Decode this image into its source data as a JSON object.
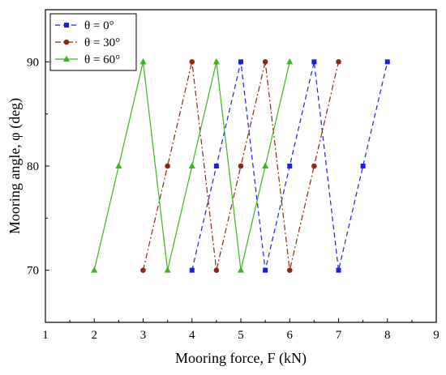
{
  "chart_data": {
    "type": "line",
    "xlabel": "Mooring force, F (kN)",
    "ylabel": "Mooring angle, φ (deg)",
    "xlim": [
      1,
      9
    ],
    "ylim": [
      65,
      95
    ],
    "xticks": [
      1,
      2,
      3,
      4,
      5,
      6,
      7,
      8,
      9
    ],
    "yticks": [
      70,
      80,
      90
    ],
    "legend_position": "top-left",
    "grid": false,
    "series": [
      {
        "name": "θ = 0°",
        "color": "#1f1fe0",
        "line_style": "dashed",
        "marker": "square",
        "points": [
          {
            "x": 4,
            "y": 70
          },
          {
            "x": 4.5,
            "y": 80
          },
          {
            "x": 5,
            "y": 90
          },
          {
            "x": 5.5,
            "y": 70
          },
          {
            "x": 6,
            "y": 80
          },
          {
            "x": 6.5,
            "y": 90
          },
          {
            "x": 7,
            "y": 70
          },
          {
            "x": 7.5,
            "y": 80
          },
          {
            "x": 8,
            "y": 90
          }
        ]
      },
      {
        "name": "θ = 30°",
        "color": "#8b2a12",
        "line_style": "dashdot",
        "marker": "circle",
        "points": [
          {
            "x": 3,
            "y": 70
          },
          {
            "x": 3.5,
            "y": 80
          },
          {
            "x": 4,
            "y": 90
          },
          {
            "x": 4.5,
            "y": 70
          },
          {
            "x": 5,
            "y": 80
          },
          {
            "x": 5.5,
            "y": 90
          },
          {
            "x": 6,
            "y": 70
          },
          {
            "x": 6.5,
            "y": 80
          },
          {
            "x": 7,
            "y": 90
          }
        ]
      },
      {
        "name": "θ = 60°",
        "color": "#3cb521",
        "line_style": "solid",
        "marker": "triangle",
        "points": [
          {
            "x": 2,
            "y": 70
          },
          {
            "x": 2.5,
            "y": 80
          },
          {
            "x": 3,
            "y": 90
          },
          {
            "x": 3.5,
            "y": 70
          },
          {
            "x": 4,
            "y": 80
          },
          {
            "x": 4.5,
            "y": 90
          },
          {
            "x": 5,
            "y": 70
          },
          {
            "x": 5.5,
            "y": 80
          },
          {
            "x": 6,
            "y": 90
          }
        ]
      }
    ]
  }
}
